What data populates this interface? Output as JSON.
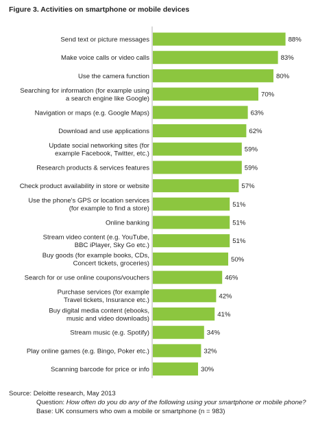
{
  "chart_data": {
    "type": "bar",
    "orientation": "horizontal",
    "title": "Figure 3. Activities on smartphone or mobile devices",
    "bar_color": "#8cc63f",
    "axis_color": "#b0b0b0",
    "xlim": [
      0,
      100
    ],
    "categories": [
      [
        "Send text or picture messages"
      ],
      [
        "Make voice calls or video calls"
      ],
      [
        "Use the camera function"
      ],
      [
        "Searching for information (for example using",
        "a search engine like Google)"
      ],
      [
        "Navigation or maps (e.g. Google Maps)"
      ],
      [
        "Download and use applications"
      ],
      [
        "Update social networking sites (for",
        "example Facebook, Twitter, etc.)"
      ],
      [
        "Research products & services features"
      ],
      [
        "Check product availability in store or website"
      ],
      [
        "Use the phone's GPS or location services",
        "(for example to find a store)"
      ],
      [
        "Online banking"
      ],
      [
        "Stream video content (e.g. YouTube,",
        "BBC iPlayer, Sky Go etc.)"
      ],
      [
        "Buy goods (for example books, CDs,",
        "Concert tickets, groceries)"
      ],
      [
        "Search for or use online coupons/vouchers"
      ],
      [
        "Purchase services (for example",
        "Travel tickets, Insurance etc.)"
      ],
      [
        "Buy digital media content (ebooks,",
        "music and video downloads)"
      ],
      [
        "Stream music (e.g. Spotify)"
      ],
      [
        "Play online games (e.g. Bingo, Poker etc.)"
      ],
      [
        "Scanning barcode for price or info"
      ]
    ],
    "values": [
      88,
      83,
      80,
      70,
      63,
      62,
      59,
      59,
      57,
      51,
      51,
      51,
      50,
      46,
      42,
      41,
      34,
      32,
      30
    ],
    "value_labels": [
      "88%",
      "83%",
      "80%",
      "70%",
      "63%",
      "62%",
      "59%",
      "59%",
      "57%",
      "51%",
      "51%",
      "51%",
      "50%",
      "46%",
      "42%",
      "41%",
      "34%",
      "32%",
      "30%"
    ]
  },
  "footer": {
    "source": "Source: Deloitte research, May 2013",
    "question_label": "Question:",
    "question_text": "How often do you do any of the following using your smartphone or mobile phone?",
    "base": "Base: UK consumers who own a mobile or smartphone (n = 983)"
  }
}
